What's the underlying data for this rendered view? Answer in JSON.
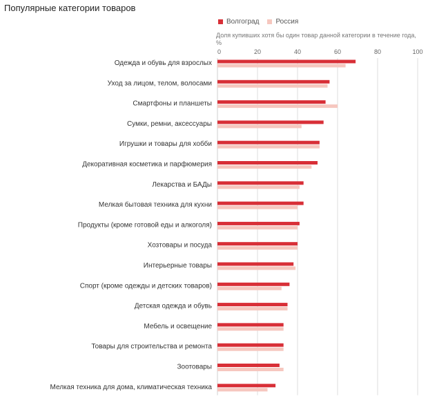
{
  "title": "Популярные категории товаров",
  "legend": {
    "volgograd": "Волгоград",
    "russia": "Россия"
  },
  "axis_note": "Доля купивших хотя бы один товар данной категории в течение года, %",
  "colors": {
    "volgograd": "#d82f37",
    "russia": "#f6c7bf",
    "grid": "#dddddd",
    "axis": "#cfcfcf",
    "text": "#333333"
  },
  "chart_data": {
    "type": "bar",
    "orientation": "horizontal",
    "title": "Популярные категории товаров",
    "xlabel": "Доля купивших хотя бы один товар данной категории в течение года, %",
    "xlim": [
      0,
      100
    ],
    "xticks": [
      0,
      20,
      40,
      60,
      80,
      100
    ],
    "grid": true,
    "legend_position": "top",
    "categories": [
      "Одежда и обувь для взрослых",
      "Уход за лицом, телом, волосами",
      "Смартфоны и планшеты",
      "Сумки, ремни, аксессуары",
      "Игрушки и товары для хобби",
      "Декоративная косметика и парфюмерия",
      "Лекарства и БАДы",
      "Мелкая бытовая техника для кухни",
      "Продукты (кроме готовой еды и алкоголя)",
      "Хозтовары и посуда",
      "Интерьерные товары",
      "Спорт (кроме одежды и детских товаров)",
      "Детская одежда и обувь",
      "Мебель и освещение",
      "Товары для строительства и ремонта",
      "Зоотовары",
      "Мелкая техника для дома, климатическая техника"
    ],
    "series": [
      {
        "name": "Волгоград",
        "values": [
          69,
          56,
          54,
          53,
          51,
          50,
          43,
          43,
          41,
          40,
          38,
          36,
          35,
          33,
          33,
          31,
          29
        ]
      },
      {
        "name": "Россия",
        "values": [
          64,
          55,
          60,
          42,
          51,
          47,
          41,
          40,
          40,
          40,
          39,
          32,
          35,
          33,
          33,
          33,
          25
        ]
      }
    ]
  }
}
